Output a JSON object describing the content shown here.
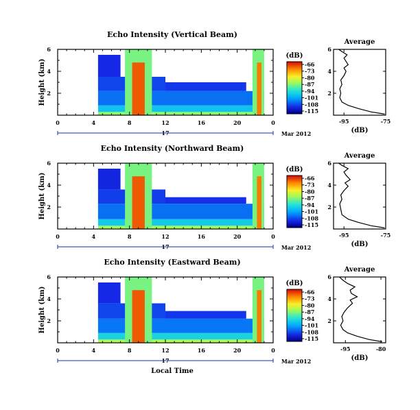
{
  "chart_data": [
    {
      "type": "heatmap",
      "title": "Echo Intensity (Vertical Beam)",
      "ylabel": "Height (km)",
      "xlabel": "",
      "x_ticks": [
        "0",
        "4",
        "8",
        "12",
        "16",
        "20",
        "0"
      ],
      "y_ticks": [
        "6",
        "4",
        "2"
      ],
      "ylim": [
        0,
        6
      ],
      "xlim": [
        0,
        24
      ],
      "date_mark": "17",
      "date_suffix": "Mar 2012",
      "colorbar": {
        "unit": "(dB)",
        "levels": [
          "-66",
          "-73",
          "-80",
          "-87",
          "-94",
          "-101",
          "-108",
          "-115"
        ]
      },
      "profile": {
        "title": "Average",
        "xlabel": "(dB)",
        "x_ticks": [
          "-95",
          "-75"
        ],
        "y_ticks": [
          "6",
          "4",
          "2"
        ],
        "xlim": [
          -100,
          -75
        ],
        "ylim": [
          0,
          6
        ],
        "points": [
          [
            -75.5,
            0.1
          ],
          [
            -82,
            0.3
          ],
          [
            -88,
            0.6
          ],
          [
            -93,
            0.9
          ],
          [
            -96,
            1.2
          ],
          [
            -97,
            1.6
          ],
          [
            -96.5,
            2.0
          ],
          [
            -97,
            2.4
          ],
          [
            -96,
            2.8
          ],
          [
            -96.5,
            3.2
          ],
          [
            -95,
            3.6
          ],
          [
            -94,
            4.0
          ],
          [
            -95,
            4.3
          ],
          [
            -93,
            4.6
          ],
          [
            -94,
            4.9
          ],
          [
            -95,
            5.2
          ],
          [
            -93.5,
            5.5
          ],
          [
            -96,
            5.8
          ],
          [
            -97.5,
            6.0
          ]
        ]
      },
      "regions": [
        {
          "t0": 4.5,
          "t1": 23,
          "h0": 0,
          "h1": 0.3,
          "level": 0.58
        },
        {
          "t0": 4.5,
          "t1": 23,
          "h0": 0.3,
          "h1": 0.9,
          "level": 0.36
        },
        {
          "t0": 4.5,
          "t1": 23,
          "h0": 0.9,
          "h1": 2.2,
          "level": 0.22
        },
        {
          "t0": 4.5,
          "t1": 12,
          "h0": 2.2,
          "h1": 3.5,
          "level": 0.16
        },
        {
          "t0": 12,
          "t1": 21,
          "h0": 2.2,
          "h1": 3.0,
          "level": 0.14
        },
        {
          "t0": 4.5,
          "t1": 7,
          "h0": 3.5,
          "h1": 5.5,
          "level": 0.12
        },
        {
          "t0": 7.5,
          "t1": 10.5,
          "h0": 0,
          "h1": 6,
          "level": 0.55
        },
        {
          "t0": 8.3,
          "t1": 9.7,
          "h0": 0,
          "h1": 4.8,
          "level": 0.92
        },
        {
          "t0": 21.7,
          "t1": 23,
          "h0": 0,
          "h1": 6,
          "level": 0.55
        },
        {
          "t0": 22.2,
          "t1": 22.7,
          "h0": 0,
          "h1": 4.8,
          "level": 0.88
        }
      ]
    },
    {
      "type": "heatmap",
      "title": "Echo Intensity (Northward Beam)",
      "ylabel": "Height (km)",
      "xlabel": "",
      "x_ticks": [
        "0",
        "4",
        "8",
        "12",
        "16",
        "20",
        "0"
      ],
      "y_ticks": [
        "6",
        "4",
        "2"
      ],
      "ylim": [
        0,
        6
      ],
      "xlim": [
        0,
        24
      ],
      "date_mark": "17",
      "date_suffix": "Mar 2012",
      "colorbar": {
        "unit": "(dB)",
        "levels": [
          "-66",
          "-73",
          "-80",
          "-87",
          "-94",
          "-101",
          "-108",
          "-115"
        ]
      },
      "profile": {
        "title": "Average",
        "xlabel": "(dB)",
        "x_ticks": [
          "-95",
          "-75"
        ],
        "y_ticks": [
          "6",
          "4",
          "2"
        ],
        "xlim": [
          -100,
          -75
        ],
        "ylim": [
          0,
          6
        ],
        "points": [
          [
            -75.5,
            0.1
          ],
          [
            -82,
            0.3
          ],
          [
            -88,
            0.6
          ],
          [
            -93,
            0.9
          ],
          [
            -96,
            1.3
          ],
          [
            -96.5,
            1.8
          ],
          [
            -97,
            2.3
          ],
          [
            -96,
            2.7
          ],
          [
            -96.5,
            3.1
          ],
          [
            -95,
            3.5
          ],
          [
            -93,
            3.9
          ],
          [
            -94.5,
            4.2
          ],
          [
            -92,
            4.5
          ],
          [
            -94,
            4.9
          ],
          [
            -95,
            5.2
          ],
          [
            -93,
            5.5
          ],
          [
            -96,
            5.8
          ],
          [
            -97.5,
            6.0
          ]
        ]
      },
      "regions": [
        {
          "t0": 4.5,
          "t1": 23,
          "h0": 0,
          "h1": 0.3,
          "level": 0.6
        },
        {
          "t0": 4.5,
          "t1": 23,
          "h0": 0.3,
          "h1": 0.9,
          "level": 0.38
        },
        {
          "t0": 4.5,
          "t1": 23,
          "h0": 0.9,
          "h1": 2.3,
          "level": 0.22
        },
        {
          "t0": 4.5,
          "t1": 12,
          "h0": 2.3,
          "h1": 3.6,
          "level": 0.15
        },
        {
          "t0": 12,
          "t1": 21,
          "h0": 2.3,
          "h1": 2.9,
          "level": 0.13
        },
        {
          "t0": 4.5,
          "t1": 7,
          "h0": 3.6,
          "h1": 5.5,
          "level": 0.11
        },
        {
          "t0": 7.5,
          "t1": 10.5,
          "h0": 0,
          "h1": 6,
          "level": 0.55
        },
        {
          "t0": 8.3,
          "t1": 9.7,
          "h0": 0,
          "h1": 4.8,
          "level": 0.92
        },
        {
          "t0": 21.7,
          "t1": 23,
          "h0": 0,
          "h1": 6,
          "level": 0.55
        },
        {
          "t0": 22.2,
          "t1": 22.7,
          "h0": 0,
          "h1": 4.8,
          "level": 0.88
        }
      ]
    },
    {
      "type": "heatmap",
      "title": "Echo Intensity (Eastward Beam)",
      "ylabel": "Height (km)",
      "xlabel": "Local Time",
      "x_ticks": [
        "0",
        "4",
        "8",
        "12",
        "16",
        "20",
        "0"
      ],
      "y_ticks": [
        "6",
        "4",
        "2"
      ],
      "ylim": [
        0,
        6
      ],
      "xlim": [
        0,
        24
      ],
      "date_mark": "17",
      "date_suffix": "Mar 2012",
      "colorbar": {
        "unit": "(dB)",
        "levels": [
          "-66",
          "-73",
          "-80",
          "-87",
          "-94",
          "-101",
          "-108",
          "-115"
        ]
      },
      "profile": {
        "title": "Average",
        "xlabel": "(dB)",
        "x_ticks": [
          "-95",
          "-80"
        ],
        "y_ticks": [
          "6",
          "4",
          "2"
        ],
        "xlim": [
          -100,
          -78
        ],
        "ylim": [
          0,
          6
        ],
        "points": [
          [
            -79.5,
            0.1
          ],
          [
            -85,
            0.3
          ],
          [
            -90,
            0.6
          ],
          [
            -94,
            0.9
          ],
          [
            -96,
            1.2
          ],
          [
            -97,
            1.6
          ],
          [
            -96,
            2.0
          ],
          [
            -96.5,
            2.4
          ],
          [
            -95.5,
            2.8
          ],
          [
            -94,
            3.2
          ],
          [
            -92,
            3.6
          ],
          [
            -93,
            3.9
          ],
          [
            -90,
            4.2
          ],
          [
            -92.5,
            4.5
          ],
          [
            -93,
            4.8
          ],
          [
            -91,
            5.1
          ],
          [
            -94,
            5.4
          ],
          [
            -96,
            5.7
          ],
          [
            -97.5,
            6.0
          ]
        ]
      },
      "regions": [
        {
          "t0": 4.5,
          "t1": 23,
          "h0": 0,
          "h1": 0.3,
          "level": 0.62
        },
        {
          "t0": 4.5,
          "t1": 23,
          "h0": 0.3,
          "h1": 0.9,
          "level": 0.4
        },
        {
          "t0": 4.5,
          "t1": 23,
          "h0": 0.9,
          "h1": 2.2,
          "level": 0.23
        },
        {
          "t0": 4.5,
          "t1": 12,
          "h0": 2.2,
          "h1": 3.6,
          "level": 0.16
        },
        {
          "t0": 12,
          "t1": 21,
          "h0": 2.2,
          "h1": 2.9,
          "level": 0.14
        },
        {
          "t0": 4.5,
          "t1": 7,
          "h0": 3.6,
          "h1": 5.5,
          "level": 0.12
        },
        {
          "t0": 7.5,
          "t1": 10.5,
          "h0": 0,
          "h1": 6,
          "level": 0.55
        },
        {
          "t0": 8.3,
          "t1": 9.7,
          "h0": 0,
          "h1": 4.8,
          "level": 0.92
        },
        {
          "t0": 21.7,
          "t1": 23,
          "h0": 0,
          "h1": 6,
          "level": 0.55
        },
        {
          "t0": 22.2,
          "t1": 22.7,
          "h0": 0,
          "h1": 4.8,
          "level": 0.88
        }
      ]
    }
  ]
}
